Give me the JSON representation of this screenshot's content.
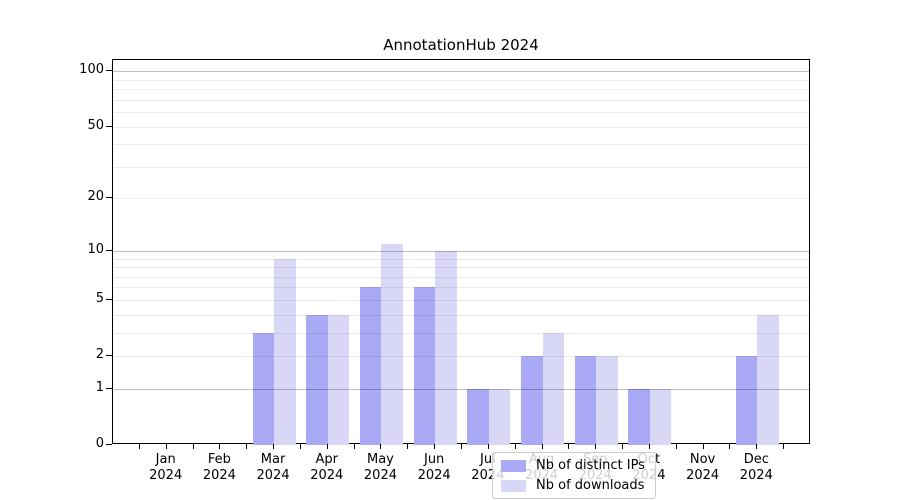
{
  "title": "AnnotationHub 2024",
  "chart_data": {
    "type": "bar",
    "title": "AnnotationHub 2024",
    "xlabel": "",
    "ylabel": "",
    "y_scale": "log1p",
    "ylim": [
      0,
      115
    ],
    "grid": true,
    "legend_position": "lower center",
    "categories": [
      "Jan",
      "Feb",
      "Mar",
      "Apr",
      "May",
      "Jun",
      "Jul",
      "Aug",
      "Sep",
      "Oct",
      "Nov",
      "Dec"
    ],
    "category_year": "2024",
    "series": [
      {
        "name": "Nb of distinct IPs",
        "color": "#a9a9f5",
        "values": [
          0,
          0,
          3,
          4,
          6,
          6,
          1,
          2,
          2,
          1,
          0,
          2
        ]
      },
      {
        "name": "Nb of downloads",
        "color": "#d8d8f6",
        "values": [
          0,
          0,
          9,
          4,
          11,
          10,
          1,
          3,
          2,
          1,
          0,
          4
        ]
      }
    ],
    "y_tick_labels": [
      0,
      1,
      2,
      5,
      10,
      20,
      50,
      100
    ],
    "y_gridlines_major": [
      1,
      10,
      100
    ],
    "y_gridlines_minor": [
      2,
      3,
      4,
      5,
      6,
      7,
      8,
      9,
      20,
      30,
      40,
      50,
      60,
      70,
      80,
      90
    ]
  }
}
